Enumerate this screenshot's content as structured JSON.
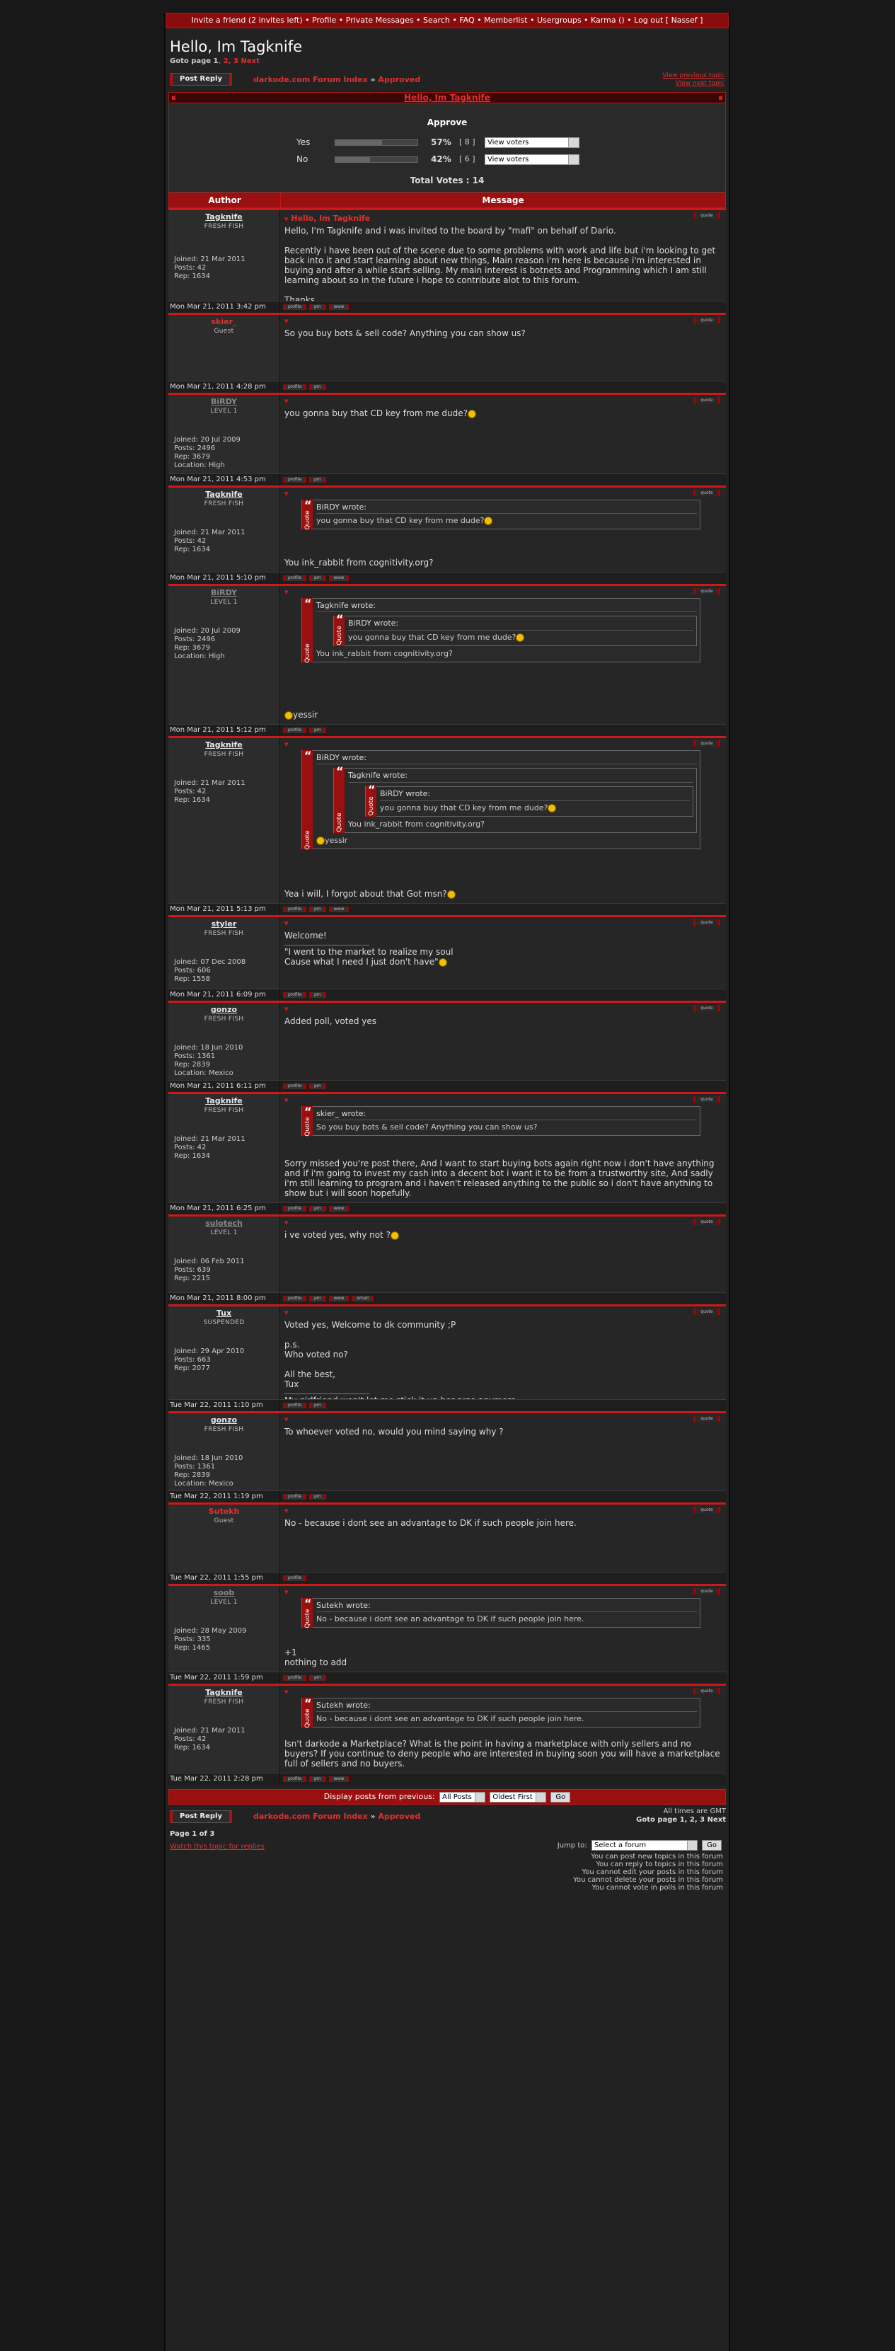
{
  "topnav": {
    "text": "Invite a friend (2 invites left) • Profile • Private Messages • Search • FAQ • Memberlist • Usergroups • Karma () • Log out [ Nassef ]"
  },
  "header": {
    "title": "Hello, Im Tagknife",
    "goto_prefix": "Goto page ",
    "page_current": "1",
    "page_links": ", 2, 3 ",
    "next": "Next"
  },
  "toolbar": {
    "post_reply": "Post Reply",
    "crumb_index": "darkode.com Forum Index",
    "crumb_sep": " » ",
    "crumb_forum": "Approved",
    "view_prev": "View previous topic",
    "view_next": "View next topic"
  },
  "topic_title": "Hello, Im Tagknife",
  "poll": {
    "question": "Approve",
    "options": [
      {
        "label": "Yes",
        "pct": "57%",
        "votes": "[ 8 ]",
        "pct_value": 57,
        "select": "View voters"
      },
      {
        "label": "No",
        "pct": "42%",
        "votes": "[ 6 ]",
        "pct_value": 42,
        "select": "View voters"
      }
    ],
    "total": "Total Votes : 14"
  },
  "columns": {
    "author": "Author",
    "message": "Message"
  },
  "buttons": {
    "quote": "quote",
    "profile": "profile",
    "pm": "pm",
    "www": "www",
    "email": "email"
  },
  "posts": [
    {
      "user": "Tagknife",
      "rank": "FRESH FISH",
      "stats": "Joined: 21 Mar 2011\nPosts: 42\nRep: 1634",
      "date": "Mon Mar 21, 2011 3:42 pm",
      "title": "Hello, Im Tagknife",
      "text": "Hello, I'm Tagknife and i was invited to the board by \"mafi\" on behalf of Dario.\n\nRecently i have been out of the scene due to some problems with work and life but i'm looking to get back into it and start learning about new things, Main reason i'm here is because i'm interested in buying and after a while start selling. My main interest is botnets and Programming which I am still learning about so in the future i hope to contribute alot to this forum.\n\nThanks,\nTagknife"
    },
    {
      "user": "skier_",
      "rank": "Guest",
      "stats": "",
      "date": "Mon Mar 21, 2011 4:28 pm",
      "text": "So you buy bots & sell code? Anything you can show us?"
    },
    {
      "user": "BiRDY",
      "rank": "LEVEL 1",
      "stats": "Joined: 20 Jul 2009\nPosts: 2496\nRep: 3679\nLocation: High",
      "date": "Mon Mar 21, 2011 4:53 pm",
      "text": "you gonna buy that CD key from me dude?"
    },
    {
      "user": "Tagknife",
      "rank": "FRESH FISH",
      "stats": "Joined: 21 Mar 2011\nPosts: 42\nRep: 1634",
      "date": "Mon Mar 21, 2011 5:10 pm",
      "quote_head": "BiRDY wrote:",
      "quote_text": "you gonna buy that CD key from me dude?",
      "text": "You ink_rabbit from cognitivity.org?"
    },
    {
      "user": "BiRDY",
      "rank": "LEVEL 1",
      "stats": "Joined: 20 Jul 2009\nPosts: 2496\nRep: 3679\nLocation: High",
      "date": "Mon Mar 21, 2011 5:12 pm",
      "quote_head": "Tagknife wrote:",
      "inner_head": "BiRDY wrote:",
      "inner_text": "you gonna buy that CD key from me dude?",
      "quote_text": "You ink_rabbit from cognitivity.org?",
      "text": "yessir"
    },
    {
      "user": "Tagknife",
      "rank": "FRESH FISH",
      "stats": "Joined: 21 Mar 2011\nPosts: 42\nRep: 1634",
      "date": "Mon Mar 21, 2011 5:13 pm",
      "quote_head": "BiRDY wrote:",
      "inner_head": "Tagknife wrote:",
      "inner2_head": "BiRDY wrote:",
      "inner2_text": "you gonna buy that CD key from me dude?",
      "inner_text": "You ink_rabbit from cognitivity.org?",
      "quote_text": "yessir",
      "text": "Yea i will, I forgot about that  Got msn?"
    },
    {
      "user": "styler",
      "rank": "FRESH FISH",
      "stats": "Joined: 07 Dec 2008\nPosts: 606\nRep: 1558",
      "date": "Mon Mar 21, 2011 6:09 pm",
      "text": "Welcome!",
      "sig": "\"I went to the market to realize my soul\nCause what I need I just don't have\""
    },
    {
      "user": "gonzo",
      "rank": "FRESH FISH",
      "stats": "Joined: 18 Jun 2010\nPosts: 1361\nRep: 2839\nLocation: Mexico",
      "date": "Mon Mar 21, 2011 6:11 pm",
      "text": "Added poll, voted yes"
    },
    {
      "user": "Tagknife",
      "rank": "FRESH FISH",
      "stats": "Joined: 21 Mar 2011\nPosts: 42\nRep: 1634",
      "date": "Mon Mar 21, 2011 6:25 pm",
      "quote_head": "skier_ wrote:",
      "quote_text": "So you buy bots & sell code? Anything you can show us?",
      "text": "Sorry missed you're post there, And I want to start buying bots again right now i don't have anything and if i'm going to invest my cash into a decent bot i want it to be from a trustworthy site, And sadly i'm still learning to program and i haven't released anything to the public so i don't have anything to show but i will soon hopefully."
    },
    {
      "user": "sulotech",
      "rank": "LEVEL 1",
      "stats": "Joined: 06 Feb 2011\nPosts: 639\nRep: 2215",
      "date": "Mon Mar 21, 2011 8:00 pm",
      "text": "i ve voted yes, why not ?"
    },
    {
      "user": "Tux",
      "rank": "SUSPENDED",
      "stats": "Joined: 29 Apr 2010\nPosts: 663\nRep: 2077",
      "date": "Tue Mar 22, 2011 1:10 pm",
      "text": "Voted yes, Welcome to dk community ;P\n\np.s.\nWho voted no?\n\nAll the best,\nTux",
      "sig": "My girlfriend won't let me stick it up her arse anymore...\nSo I've had to quit drug smuggling."
    },
    {
      "user": "gonzo",
      "rank": "FRESH FISH",
      "stats": "Joined: 18 Jun 2010\nPosts: 1361\nRep: 2839\nLocation: Mexico",
      "date": "Tue Mar 22, 2011 1:19 pm",
      "text": "To whoever voted no, would you mind saying why ?"
    },
    {
      "user": "Sutekh",
      "rank": "Guest",
      "stats": "",
      "date": "Tue Mar 22, 2011 1:55 pm",
      "text": "No - because i dont see an advantage to DK if such people join here."
    },
    {
      "user": "soob",
      "rank": "LEVEL 1",
      "stats": "Joined: 28 May 2009\nPosts: 335\nRep: 1465",
      "date": "Tue Mar 22, 2011 1:59 pm",
      "quote_head": "Sutekh wrote:",
      "quote_text": "No - because i dont see an advantage to DK if such people join here.",
      "text": "+1\nnothing to add"
    },
    {
      "user": "Tagknife",
      "rank": "FRESH FISH",
      "stats": "Joined: 21 Mar 2011\nPosts: 42\nRep: 1634",
      "date": "Tue Mar 22, 2011 2:28 pm",
      "quote_head": "Sutekh wrote:",
      "quote_text": "No - because i dont see an advantage to DK if such people join here.",
      "text": "Isn't darkode a Marketplace? What is the point in having a marketplace with only sellers and no buyers? If you continue to deny people who are interested in buying soon you will have a marketplace full of sellers and no buyers."
    }
  ],
  "bottom": {
    "display_label": "Display posts from previous:",
    "sel_posts": "All Posts",
    "sel_order": "Oldest First",
    "go": "Go",
    "timezone": "All times are GMT",
    "goto": "Goto page 1, 2, 3  Next",
    "page_of": "Page 1 of 3",
    "watch": "Watch this topic for replies",
    "jump_label": "Jump to:",
    "jump_sel": "Select a forum",
    "perms": [
      "You can post new topics in this forum",
      "You can reply to topics in this forum",
      "You cannot edit your posts in this forum",
      "You cannot delete your posts in this forum",
      "You cannot vote in polls in this forum"
    ]
  },
  "colors": {
    "accent": "#d01818",
    "username_red": "#e03030",
    "username_grey": "#888888",
    "bg": "#222222"
  }
}
